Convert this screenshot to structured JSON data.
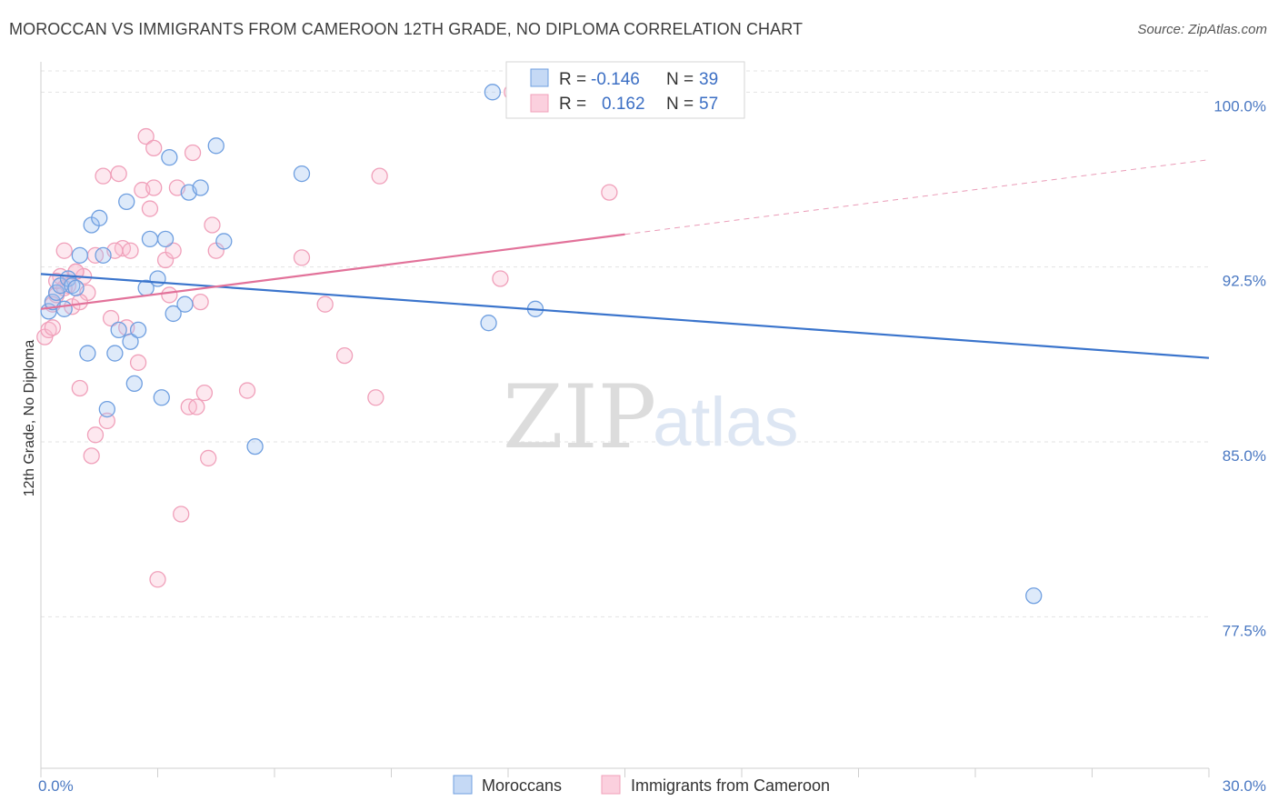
{
  "title": "MOROCCAN VS IMMIGRANTS FROM CAMEROON 12TH GRADE, NO DIPLOMA CORRELATION CHART",
  "source": "Source: ZipAtlas.com",
  "watermark": {
    "zip": "ZIP",
    "atlas": "atlas"
  },
  "colors": {
    "blue": "#6f9fe0",
    "blue_line": "#3a74cc",
    "pink": "#f0a0ba",
    "pink_line": "#e2729a"
  },
  "chart_data": {
    "type": "scatter",
    "title": "MOROCCAN VS IMMIGRANTS FROM CAMEROON 12TH GRADE, NO DIPLOMA CORRELATION CHART",
    "xlabel": "",
    "ylabel": "12th Grade, No Diploma",
    "xlim": [
      0,
      30
    ],
    "ylim": [
      71.0,
      101.3
    ],
    "x_tick_labels": [
      {
        "v": 0,
        "label": "0.0%"
      },
      {
        "v": 30,
        "label": "30.0%"
      }
    ],
    "y_tick_labels": [
      {
        "v": 100,
        "label": "100.0%"
      },
      {
        "v": 92.5,
        "label": "92.5%"
      },
      {
        "v": 85,
        "label": "85.0%"
      },
      {
        "v": 77.5,
        "label": "77.5%"
      }
    ],
    "grid": true,
    "legend": {
      "placement": "top-center",
      "rows": [
        {
          "r_label": "R =",
          "r": "-0.146",
          "n_label": "N =",
          "n": "39"
        },
        {
          "r_label": "R =",
          "r": "0.162",
          "n_label": "N =",
          "n": "57"
        }
      ]
    },
    "series": [
      {
        "name": "Moroccans",
        "color": "#6f9fe0",
        "trend": {
          "x": [
            0,
            30
          ],
          "y": [
            92.2,
            88.6
          ],
          "dashed_from": null
        },
        "points": [
          [
            0.2,
            90.6
          ],
          [
            0.3,
            91.0
          ],
          [
            0.4,
            91.4
          ],
          [
            0.5,
            91.7
          ],
          [
            0.6,
            90.7
          ],
          [
            0.7,
            92.0
          ],
          [
            0.8,
            91.7
          ],
          [
            1.0,
            93.0
          ],
          [
            1.2,
            88.8
          ],
          [
            1.3,
            94.3
          ],
          [
            1.5,
            94.6
          ],
          [
            1.6,
            93.0
          ],
          [
            1.7,
            86.4
          ],
          [
            1.9,
            88.8
          ],
          [
            2.0,
            89.8
          ],
          [
            2.2,
            95.3
          ],
          [
            2.3,
            89.3
          ],
          [
            2.4,
            87.5
          ],
          [
            2.5,
            89.8
          ],
          [
            2.7,
            91.6
          ],
          [
            2.8,
            93.7
          ],
          [
            3.0,
            92.0
          ],
          [
            3.1,
            86.9
          ],
          [
            3.2,
            93.7
          ],
          [
            3.3,
            97.2
          ],
          [
            3.4,
            90.5
          ],
          [
            3.7,
            90.9
          ],
          [
            3.8,
            95.7
          ],
          [
            4.1,
            95.9
          ],
          [
            4.5,
            97.7
          ],
          [
            4.7,
            93.6
          ],
          [
            5.5,
            84.8
          ],
          [
            6.7,
            96.5
          ],
          [
            11.5,
            90.1
          ],
          [
            11.6,
            100.0
          ],
          [
            12.7,
            90.7
          ],
          [
            15.9,
            100.0
          ],
          [
            25.5,
            78.4
          ],
          [
            0.9,
            91.6
          ]
        ]
      },
      {
        "name": "Immigrants from Cameroon",
        "color": "#f0a0ba",
        "trend": {
          "x": [
            0,
            30
          ],
          "y": [
            90.7,
            97.1
          ],
          "dashed_from": 15
        },
        "points": [
          [
            0.1,
            89.5
          ],
          [
            0.2,
            89.8
          ],
          [
            0.3,
            90.9
          ],
          [
            0.4,
            91.3
          ],
          [
            0.5,
            92.1
          ],
          [
            0.6,
            93.2
          ],
          [
            0.7,
            91.7
          ],
          [
            0.8,
            90.8
          ],
          [
            0.9,
            92.3
          ],
          [
            1.0,
            87.3
          ],
          [
            1.1,
            92.1
          ],
          [
            1.2,
            91.4
          ],
          [
            1.3,
            84.4
          ],
          [
            1.4,
            85.3
          ],
          [
            1.6,
            96.4
          ],
          [
            1.7,
            85.9
          ],
          [
            1.8,
            90.3
          ],
          [
            2.0,
            96.5
          ],
          [
            2.1,
            93.3
          ],
          [
            2.2,
            89.9
          ],
          [
            2.3,
            93.2
          ],
          [
            2.5,
            88.4
          ],
          [
            2.6,
            95.8
          ],
          [
            2.7,
            98.1
          ],
          [
            2.8,
            95.0
          ],
          [
            2.9,
            97.6
          ],
          [
            3.0,
            79.1
          ],
          [
            3.2,
            92.8
          ],
          [
            3.3,
            91.3
          ],
          [
            3.4,
            93.2
          ],
          [
            3.5,
            95.9
          ],
          [
            3.6,
            81.9
          ],
          [
            3.8,
            86.5
          ],
          [
            3.9,
            97.4
          ],
          [
            4.0,
            86.5
          ],
          [
            4.1,
            91.0
          ],
          [
            4.2,
            87.1
          ],
          [
            4.3,
            84.3
          ],
          [
            4.4,
            94.3
          ],
          [
            4.5,
            93.2
          ],
          [
            5.3,
            87.2
          ],
          [
            6.7,
            92.9
          ],
          [
            7.3,
            90.9
          ],
          [
            7.8,
            88.7
          ],
          [
            8.6,
            86.9
          ],
          [
            8.7,
            96.4
          ],
          [
            11.8,
            92.0
          ],
          [
            12.1,
            100.0
          ],
          [
            14.6,
            95.7
          ],
          [
            0.6,
            91.6
          ],
          [
            1.0,
            91.0
          ],
          [
            1.9,
            93.2
          ],
          [
            2.9,
            95.9
          ],
          [
            0.9,
            92.3
          ],
          [
            0.4,
            91.9
          ],
          [
            1.4,
            93.0
          ],
          [
            0.3,
            89.9
          ]
        ]
      }
    ]
  }
}
